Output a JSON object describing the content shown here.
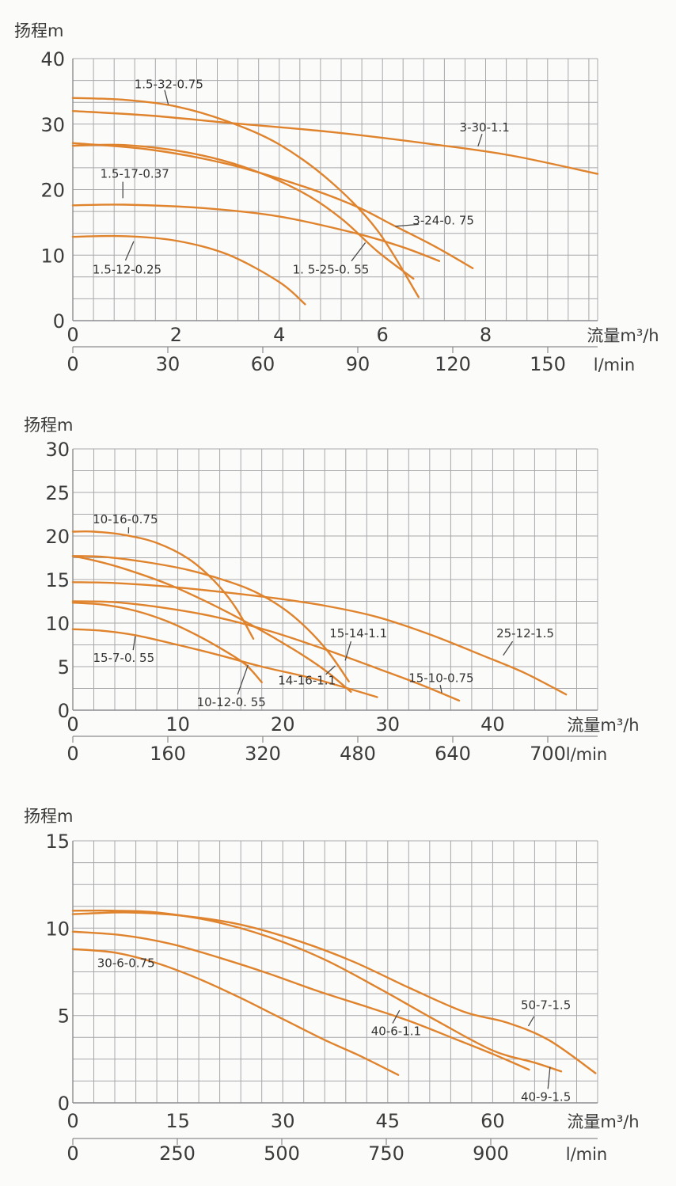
{
  "page": {
    "background": "#fbfbfa"
  },
  "colors": {
    "curve": "#e0832d",
    "grid": "#a8a8aa",
    "axis": "#8d8d8f",
    "leader": "#4a4a4a",
    "text": "#3b3b3b"
  },
  "chart_data": [
    {
      "type": "line",
      "title": "扬程m",
      "xlabel": "流量m³/h",
      "x2label": "l/min",
      "ylabel": "扬程m",
      "xlim": [
        0,
        10.17
      ],
      "ylim": [
        0,
        40
      ],
      "x_ticks": [
        0,
        2,
        4,
        6,
        8
      ],
      "y_ticks": [
        0,
        10,
        20,
        30,
        40
      ],
      "x2_ticks": [
        0,
        30,
        60,
        90,
        120,
        150
      ],
      "grid": {
        "on": true,
        "x_minor": 0.4,
        "y_minor": 3.3333
      },
      "series": [
        {
          "name": "1.5-32-0.75",
          "points": [
            [
              0,
              34
            ],
            [
              1,
              33.7
            ],
            [
              2,
              32.7
            ],
            [
              3,
              30.4
            ],
            [
              4,
              26.9
            ],
            [
              5,
              21.2
            ],
            [
              5.9,
              13.8
            ],
            [
              6.7,
              3.6
            ]
          ],
          "label": {
            "text": "1.5-32-0.75",
            "x": 1.86,
            "y": 36.1
          },
          "leader": [
            1.78,
            35.2,
            1.85,
            33.0
          ]
        },
        {
          "name": "3-30-1.1",
          "points": [
            [
              0,
              32
            ],
            [
              1.5,
              31.3
            ],
            [
              3,
              30.2
            ],
            [
              5,
              28.8
            ],
            [
              7,
              26.9
            ],
            [
              8.5,
              25.2
            ],
            [
              10.17,
              22.4
            ]
          ],
          "label": {
            "text": "3-30-1.1",
            "x": 7.98,
            "y": 29.5
          },
          "leader": [
            7.93,
            28.5,
            7.85,
            26.6
          ]
        },
        {
          "name": "3-24-0.75",
          "points": [
            [
              0,
              27.1
            ],
            [
              1.5,
              26.1
            ],
            [
              3,
              23.9
            ],
            [
              4.5,
              20.4
            ],
            [
              5.5,
              17.4
            ],
            [
              6.2,
              14.6
            ],
            [
              7,
              11.4
            ],
            [
              7.75,
              8
            ]
          ],
          "label": {
            "text": "3-24-0. 75",
            "x": 7.18,
            "y": 15.3
          },
          "leader": [
            6.7,
            14.7,
            6.25,
            14.4
          ]
        },
        {
          "name": "1.5-25-0.55",
          "points": [
            [
              0,
              26.7
            ],
            [
              1,
              26.8
            ],
            [
              2.2,
              25.7
            ],
            [
              3.3,
              23.5
            ],
            [
              4.4,
              19.8
            ],
            [
              5.2,
              15.6
            ],
            [
              5.9,
              10.6
            ],
            [
              6.6,
              6.4
            ]
          ],
          "label": {
            "text": "1. 5-25-0. 55",
            "x": 5.0,
            "y": 7.8
          },
          "leader": [
            5.4,
            9.1,
            5.67,
            11.9
          ]
        },
        {
          "name": "1.5-17-0.37",
          "points": [
            [
              0,
              17.6
            ],
            [
              1,
              17.7
            ],
            [
              2.5,
              17.2
            ],
            [
              4,
              15.9
            ],
            [
              5.5,
              13.3
            ],
            [
              6.4,
              11.2
            ],
            [
              7.1,
              9.1
            ]
          ],
          "label": {
            "text": "1.5-17-0.37",
            "x": 1.2,
            "y": 22.4
          },
          "leader": [
            0.97,
            21.2,
            0.97,
            18.7
          ]
        },
        {
          "name": "1.5-12-0.25",
          "points": [
            [
              0,
              12.8
            ],
            [
              1,
              12.9
            ],
            [
              2,
              12.2
            ],
            [
              3,
              10.1
            ],
            [
              4,
              5.9
            ],
            [
              4.5,
              2.5
            ]
          ],
          "label": {
            "text": "1.5-12-0.25",
            "x": 1.05,
            "y": 7.8
          },
          "leader": [
            1.02,
            9.2,
            1.18,
            12.1
          ]
        }
      ]
    },
    {
      "type": "line",
      "title": "扬程m",
      "xlabel": "流量m³/h",
      "x2label": "l/min",
      "ylabel": "扬程m",
      "xlim": [
        0,
        50
      ],
      "ylim": [
        0,
        30
      ],
      "x_ticks": [
        0,
        10,
        20,
        30,
        40
      ],
      "y_ticks": [
        0,
        5,
        10,
        15,
        20,
        25,
        30
      ],
      "x2_ticks": [
        0,
        160,
        320,
        480,
        640,
        700
      ],
      "grid": {
        "on": true,
        "x_minor": 2,
        "y_minor": 2.5
      },
      "series": [
        {
          "name": "10-16-0.75",
          "points": [
            [
              0,
              20.5
            ],
            [
              2,
              20.5
            ],
            [
              5,
              20.1
            ],
            [
              8,
              19.2
            ],
            [
              11,
              17.4
            ],
            [
              13.5,
              14.8
            ],
            [
              15.5,
              11.8
            ],
            [
              17.2,
              8.2
            ]
          ],
          "label": {
            "text": "10-16-0.75",
            "x": 5.0,
            "y": 21.9
          },
          "leader": [
            5.32,
            21.0,
            5.3,
            20.3
          ]
        },
        {
          "name": "15-14-1.1",
          "points": [
            [
              0,
              17.7
            ],
            [
              3,
              17.6
            ],
            [
              7,
              17.0
            ],
            [
              11,
              16.1
            ],
            [
              15,
              14.7
            ],
            [
              18,
              13.2
            ],
            [
              21,
              10.8
            ],
            [
              24,
              7.2
            ],
            [
              26.3,
              3.3
            ]
          ],
          "label": {
            "text": "15-14-1.1",
            "x": 27.2,
            "y": 8.8
          },
          "leader": [
            26.5,
            7.9,
            25.95,
            5.7
          ]
        },
        {
          "name": "14-16-1.1",
          "points": [
            [
              0,
              17.7
            ],
            [
              2,
              17.2
            ],
            [
              5,
              16.2
            ],
            [
              9,
              14.5
            ],
            [
              13,
              12.3
            ],
            [
              17,
              9.8
            ],
            [
              21,
              7.0
            ],
            [
              24,
              4.6
            ],
            [
              26.5,
              2.1
            ]
          ],
          "label": {
            "text": "14-16-1.1",
            "x": 22.3,
            "y": 3.4
          },
          "leader": [
            24.1,
            4.1,
            25.0,
            5.1
          ]
        },
        {
          "name": "25-12-1.5",
          "points": [
            [
              0,
              14.7
            ],
            [
              4,
              14.6
            ],
            [
              9,
              14.2
            ],
            [
              14,
              13.6
            ],
            [
              19,
              12.9
            ],
            [
              24,
              12.0
            ],
            [
              29,
              10.7
            ],
            [
              34,
              8.7
            ],
            [
              39,
              6.3
            ],
            [
              43,
              4.3
            ],
            [
              47,
              1.8
            ]
          ],
          "label": {
            "text": "25-12-1.5",
            "x": 43.1,
            "y": 8.8
          },
          "leader": [
            41.9,
            7.9,
            41.0,
            6.3
          ]
        },
        {
          "name": "15-10-0.75",
          "points": [
            [
              0,
              12.5
            ],
            [
              4,
              12.4
            ],
            [
              9,
              11.7
            ],
            [
              14,
              10.6
            ],
            [
              19,
              9.0
            ],
            [
              24,
              7.0
            ],
            [
              29,
              4.8
            ],
            [
              33,
              3.0
            ],
            [
              36.8,
              1.1
            ]
          ],
          "label": {
            "text": "15-10-0.75",
            "x": 35.1,
            "y": 3.7
          },
          "leader": [
            35.0,
            2.9,
            35.15,
            2.0
          ]
        },
        {
          "name": "10-12-0.55",
          "points": [
            [
              0,
              12.35
            ],
            [
              3,
              12.1
            ],
            [
              6,
              11.4
            ],
            [
              9,
              10.2
            ],
            [
              12,
              8.5
            ],
            [
              14.5,
              6.8
            ],
            [
              16.5,
              5.2
            ],
            [
              18,
              3.2
            ]
          ],
          "label": {
            "text": "10-12-0. 55",
            "x": 15.1,
            "y": 0.9
          },
          "leader": [
            15.7,
            1.8,
            16.7,
            5.2
          ]
        },
        {
          "name": "15-7-0.55",
          "points": [
            [
              0,
              9.3
            ],
            [
              3,
              9.1
            ],
            [
              6,
              8.6
            ],
            [
              10,
              7.5
            ],
            [
              14,
              6.3
            ],
            [
              18,
              5.0
            ],
            [
              23,
              3.6
            ],
            [
              29,
              1.5
            ]
          ],
          "label": {
            "text": "15-7-0. 55",
            "x": 4.85,
            "y": 6.0
          },
          "leader": [
            5.75,
            6.9,
            5.95,
            8.5
          ]
        }
      ]
    },
    {
      "type": "line",
      "title": "扬程m",
      "xlabel": "流量m³/h",
      "x2label": "l/min",
      "ylabel": "扬程m",
      "xlim": [
        0,
        75
      ],
      "ylim": [
        0,
        15
      ],
      "x_ticks": [
        0,
        15,
        30,
        45,
        60
      ],
      "y_ticks": [
        0,
        5,
        10,
        15
      ],
      "x2_ticks": [
        0,
        250,
        500,
        750,
        900
      ],
      "grid": {
        "on": true,
        "x_minor": 3,
        "y_minor": 1.25
      },
      "series": [
        {
          "name": "40-9-1.5",
          "points": [
            [
              0,
              11.0
            ],
            [
              6,
              11.0
            ],
            [
              12,
              10.9
            ],
            [
              20,
              10.4
            ],
            [
              28,
              9.5
            ],
            [
              36,
              8.2
            ],
            [
              44,
              6.5
            ],
            [
              52,
              4.7
            ],
            [
              60,
              3.0
            ],
            [
              66,
              2.3
            ],
            [
              69.8,
              1.8
            ]
          ],
          "label": {
            "text": "40-9-1.5",
            "x": 67.6,
            "y": 0.35
          },
          "leader": [
            67.9,
            0.8,
            68.2,
            2.05
          ]
        },
        {
          "name": "50-7-1.5",
          "points": [
            [
              0,
              10.8
            ],
            [
              8,
              10.9
            ],
            [
              16,
              10.7
            ],
            [
              24,
              10.2
            ],
            [
              32,
              9.3
            ],
            [
              40,
              8.1
            ],
            [
              48,
              6.6
            ],
            [
              56,
              5.2
            ],
            [
              62,
              4.6
            ],
            [
              68,
              3.6
            ],
            [
              74.7,
              1.7
            ]
          ],
          "label": {
            "text": "50-7-1.5",
            "x": 67.6,
            "y": 5.6
          },
          "leader": [
            65.9,
            4.95,
            65.1,
            4.4
          ]
        },
        {
          "name": "40-6-1.1",
          "points": [
            [
              0,
              9.8
            ],
            [
              7,
              9.6
            ],
            [
              14,
              9.1
            ],
            [
              21,
              8.3
            ],
            [
              28,
              7.4
            ],
            [
              35,
              6.4
            ],
            [
              42,
              5.5
            ],
            [
              48,
              4.7
            ],
            [
              55,
              3.6
            ],
            [
              60,
              2.8
            ],
            [
              65.2,
              1.9
            ]
          ],
          "label": {
            "text": "40-6-1.1",
            "x": 46.2,
            "y": 4.1
          },
          "leader": [
            45.7,
            4.55,
            46.7,
            5.3
          ]
        },
        {
          "name": "30-6-0.75",
          "points": [
            [
              0,
              8.8
            ],
            [
              6,
              8.6
            ],
            [
              12,
              8.0
            ],
            [
              18,
              7.1
            ],
            [
              24,
              6.0
            ],
            [
              30,
              4.8
            ],
            [
              36,
              3.6
            ],
            [
              41,
              2.7
            ],
            [
              46.5,
              1.6
            ]
          ],
          "label": {
            "text": "30-6-0.75",
            "x": 7.6,
            "y": 8.0
          },
          "leader": null
        }
      ]
    }
  ]
}
